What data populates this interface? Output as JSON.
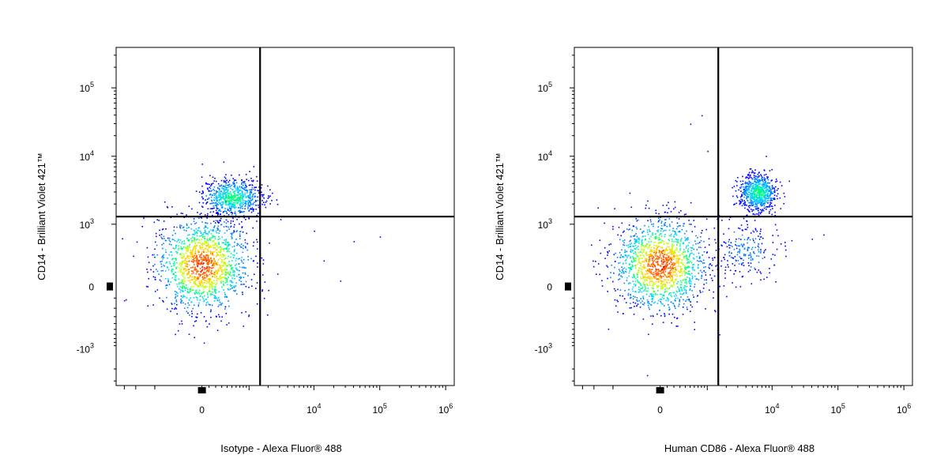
{
  "chart_data": [
    {
      "type": "scatter",
      "plot_style": "pseudocolor density dot plot",
      "xlabel": "Isotype - Alexa Fluor® 488",
      "ylabel": "CD14 - Brilliant Violet 421™",
      "x_scale": "biexponential",
      "y_scale": "biexponential",
      "x_ticks": [
        {
          "label": "0",
          "sup": ""
        },
        {
          "label": "10",
          "sup": "4"
        },
        {
          "label": "10",
          "sup": "5"
        },
        {
          "label": "10",
          "sup": "6"
        }
      ],
      "y_ticks": [
        {
          "label": "10",
          "sup": "5"
        },
        {
          "label": "10",
          "sup": "4"
        },
        {
          "label": "10",
          "sup": "3"
        },
        {
          "label": "0",
          "sup": ""
        },
        {
          "label": "-10",
          "sup": "3"
        }
      ],
      "quadrant_gate": {
        "x_data": 1500,
        "y_data": 1300
      },
      "populations": [
        {
          "name": "",
          "x_center": 0,
          "y_center": 200,
          "spread_x": "wide",
          "spread_y": "wide",
          "density": "high"
        },
        {
          "name": "",
          "x_center": 500,
          "y_center": 2500,
          "spread_x": "medium",
          "spread_y": "small",
          "density": "medium"
        }
      ],
      "sparse_events": [
        [
          10000,
          800
        ],
        [
          14000,
          250
        ],
        [
          25000,
          50
        ],
        [
          40000,
          550
        ],
        [
          100000,
          650
        ]
      ],
      "grid": false
    },
    {
      "type": "scatter",
      "plot_style": "pseudocolor density dot plot",
      "xlabel": "Human CD86 - Alexa Fluor® 488",
      "ylabel": "CD14 - Brilliant Violet 421™",
      "x_scale": "biexponential",
      "y_scale": "biexponential",
      "x_ticks": [
        {
          "label": "0",
          "sup": ""
        },
        {
          "label": "10",
          "sup": "4"
        },
        {
          "label": "10",
          "sup": "5"
        },
        {
          "label": "10",
          "sup": "6"
        }
      ],
      "y_ticks": [
        {
          "label": "10",
          "sup": "5"
        },
        {
          "label": "10",
          "sup": "4"
        },
        {
          "label": "10",
          "sup": "3"
        },
        {
          "label": "0",
          "sup": ""
        },
        {
          "label": "-10",
          "sup": "3"
        }
      ],
      "quadrant_gate": {
        "x_data": 1500,
        "y_data": 1300
      },
      "populations": [
        {
          "name": "",
          "x_center": 0,
          "y_center": 200,
          "spread_x": "wide",
          "spread_y": "wide",
          "density": "high"
        },
        {
          "name": "",
          "x_center": 6000,
          "y_center": 3000,
          "spread_x": "small",
          "spread_y": "small",
          "density": "medium"
        },
        {
          "name": "",
          "x_center": 4000,
          "y_center": 400,
          "spread_x": "medium",
          "spread_y": "medium",
          "density": "low"
        }
      ],
      "sparse_events": [
        [
          500,
          30000
        ],
        [
          800,
          40000
        ],
        [
          1000,
          12000
        ],
        [
          40000,
          600
        ],
        [
          60000,
          700
        ]
      ],
      "grid": false
    }
  ],
  "colormap": [
    "#0000ff",
    "#0080ff",
    "#00d0ff",
    "#00ff80",
    "#c0ff00",
    "#ffd000",
    "#ff6000",
    "#ff0000"
  ],
  "gate_color": "#000000"
}
